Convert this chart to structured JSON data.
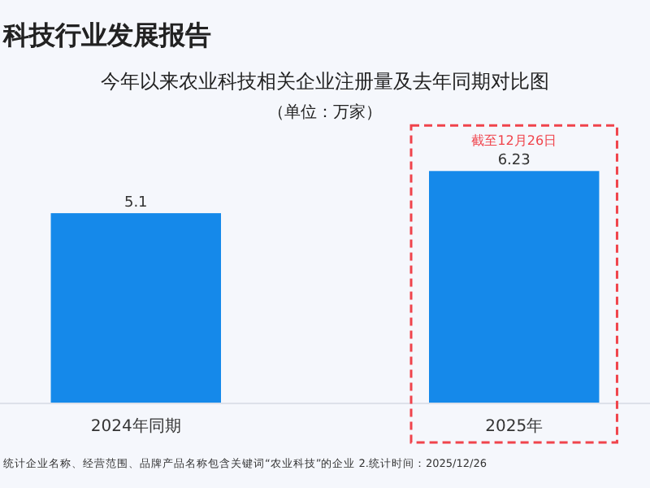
{
  "chart_data": {
    "type": "bar",
    "title": "今年以来农业科技相关企业注册量及去年同期对比图",
    "subtitle": "（单位：万家）",
    "categories": [
      "2024年同期",
      "2025年"
    ],
    "values": [
      5.1,
      6.23
    ],
    "color": "#1589ea",
    "data_labels": true,
    "annotations": [
      "科技行业发展报告",
      {
        "text": "截至12月26日",
        "x": "2025年",
        "y": 6.23
      },
      "统计企业名称、经营范围、品牌产品名称包含关键词“农业科技”的企业  2.统计时间：2025/12/26"
    ]
  }
}
